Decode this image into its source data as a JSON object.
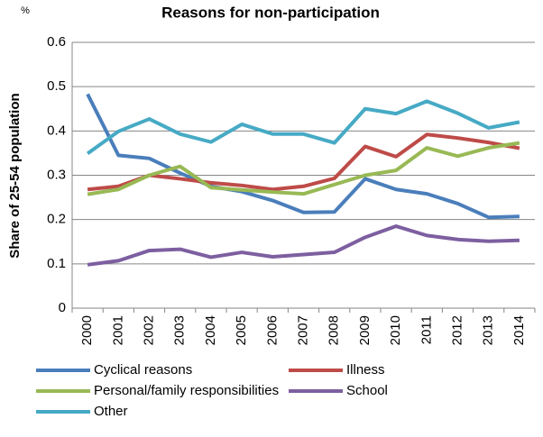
{
  "chart_data": {
    "type": "line",
    "title": "Reasons for non-participation",
    "unit_label": "%",
    "y_label": "Share of 25-54 population",
    "categories": [
      "2000",
      "2001",
      "2002",
      "2003",
      "2004",
      "2005",
      "2006",
      "2007",
      "2008",
      "2009",
      "2010",
      "2011",
      "2012",
      "2013",
      "2014"
    ],
    "series": [
      {
        "name": "Cyclical reasons",
        "color": "#4a7ebb",
        "values": [
          0.483,
          0.345,
          0.338,
          0.305,
          0.275,
          0.263,
          0.243,
          0.216,
          0.217,
          0.292,
          0.268,
          0.258,
          0.236,
          0.205,
          0.207
        ]
      },
      {
        "name": "Illness",
        "color": "#be4b48",
        "values": [
          0.268,
          0.275,
          0.3,
          0.292,
          0.283,
          0.277,
          0.268,
          0.275,
          0.293,
          0.365,
          0.342,
          0.392,
          0.384,
          0.374,
          0.361
        ]
      },
      {
        "name": "Personal/family responsibilities",
        "color": "#98b954",
        "values": [
          0.257,
          0.268,
          0.3,
          0.32,
          0.272,
          0.267,
          0.262,
          0.258,
          0.279,
          0.3,
          0.311,
          0.362,
          0.343,
          0.362,
          0.373
        ]
      },
      {
        "name": "School",
        "color": "#7d5fa0",
        "values": [
          0.098,
          0.107,
          0.13,
          0.133,
          0.115,
          0.126,
          0.116,
          0.121,
          0.126,
          0.16,
          0.185,
          0.164,
          0.155,
          0.151,
          0.153
        ]
      },
      {
        "name": "Other",
        "color": "#46aac5",
        "values": [
          0.349,
          0.399,
          0.427,
          0.393,
          0.375,
          0.415,
          0.393,
          0.393,
          0.373,
          0.45,
          0.439,
          0.467,
          0.44,
          0.407,
          0.42
        ]
      }
    ],
    "ylim": [
      0,
      0.6
    ],
    "yticks": [
      0,
      0.1,
      0.2,
      0.3,
      0.4,
      0.5,
      0.6
    ],
    "grid": true
  }
}
